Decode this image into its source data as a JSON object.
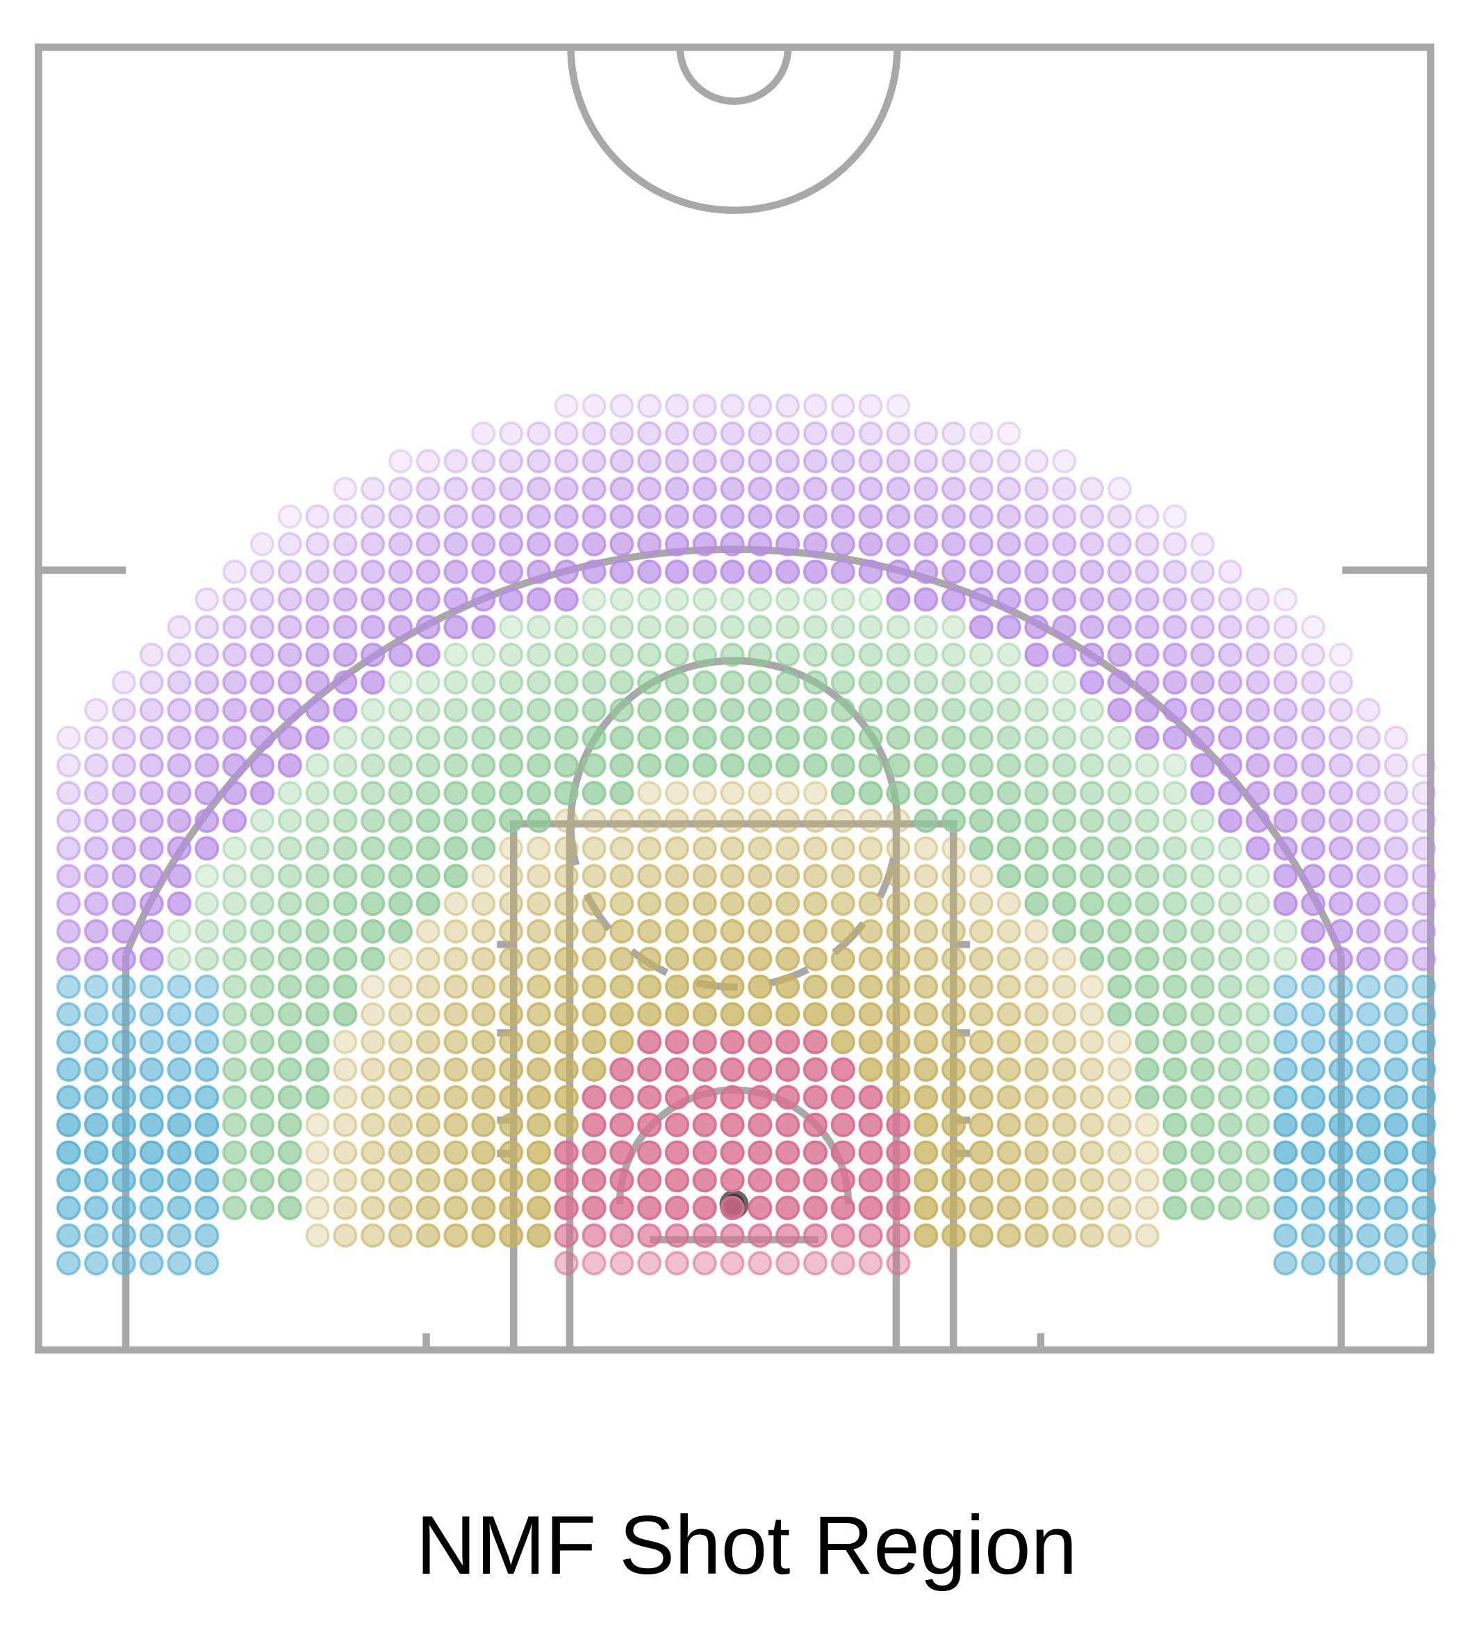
{
  "title": "NMF Shot Region",
  "region_colors": [
    "#d9708f",
    "#c6b25c",
    "#8ccb95",
    "#b88ae6",
    "#58b2d3"
  ]
}
